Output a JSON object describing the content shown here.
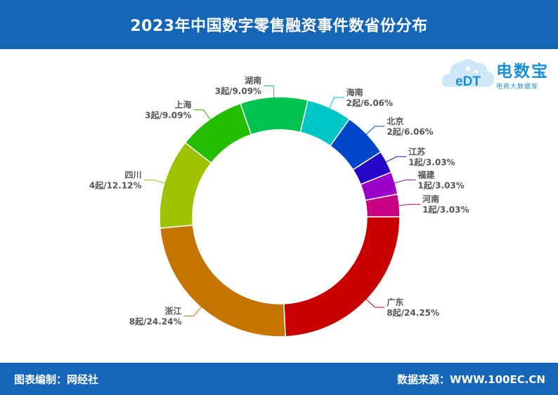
{
  "header": {
    "title": "2023年中国数字零售融资事件数省份分布"
  },
  "footer": {
    "editor": "图表编制：网经社",
    "source": "数据来源：WWW.100EC.CN"
  },
  "logo": {
    "text": "电数宝",
    "sub": "电商大数据库",
    "mark": "eDT",
    "color": "#1a8fd8"
  },
  "chart_data": {
    "type": "pie",
    "title": "2023年中国数字零售融资事件数省份分布",
    "slices": [
      {
        "label": "广东",
        "value": 8,
        "text": "8起/24.25%",
        "color": "#c80000"
      },
      {
        "label": "浙江",
        "value": 8,
        "text": "8起/24.24%",
        "color": "#c57400"
      },
      {
        "label": "四川",
        "value": 4,
        "text": "4起/12.12%",
        "color": "#9dc300"
      },
      {
        "label": "上海",
        "value": 3,
        "text": "3起/9.09%",
        "color": "#24bd00"
      },
      {
        "label": "湖南",
        "value": 3,
        "text": "3起/9.09%",
        "color": "#00c34f"
      },
      {
        "label": "海南",
        "value": 2,
        "text": "2起/6.06%",
        "color": "#00c6c6"
      },
      {
        "label": "北京",
        "value": 2,
        "text": "2起/6.06%",
        "color": "#0048c9"
      },
      {
        "label": "江苏",
        "value": 1,
        "text": "1起/3.03%",
        "color": "#2406c6"
      },
      {
        "label": "福建",
        "value": 1,
        "text": "1起/3.03%",
        "color": "#9a00c8"
      },
      {
        "label": "河南",
        "value": 1,
        "text": "1起/3.03%",
        "color": "#c80082"
      }
    ]
  }
}
